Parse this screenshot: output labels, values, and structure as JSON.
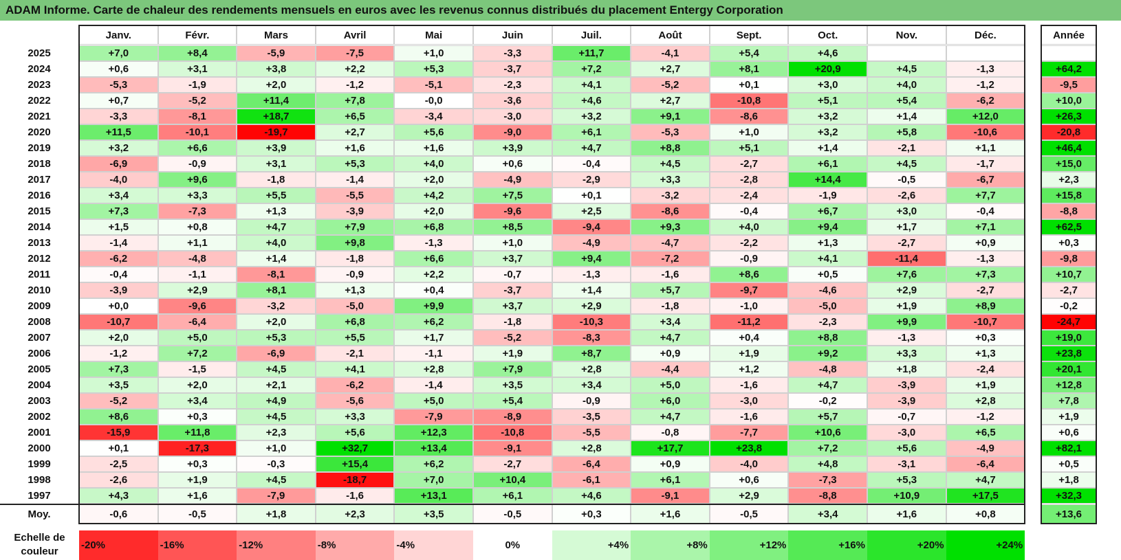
{
  "title": "ADAM Informe. Carte de chaleur des rendements mensuels en euros avec les revenus connus distribués du placement Entergy Corporation",
  "chart_data": {
    "type": "heatmap",
    "title": "ADAM Informe. Carte de chaleur des rendements mensuels en euros avec les revenus connus distribués du placement Entergy Corporation",
    "months": [
      "Janv.",
      "Févr.",
      "Mars",
      "Avril",
      "Mai",
      "Juin",
      "Juil.",
      "Août",
      "Sept.",
      "Oct.",
      "Nov.",
      "Déc."
    ],
    "annual_label": "Année",
    "rows": [
      {
        "year": "2025",
        "values": [
          "+7,0",
          "+8,4",
          "-5,9",
          "-7,5",
          "+1,0",
          "-3,3",
          "+11,7",
          "-4,1",
          "+5,4",
          "+4,6",
          "",
          ""
        ],
        "annual": ""
      },
      {
        "year": "2024",
        "values": [
          "+0,6",
          "+3,1",
          "+3,8",
          "+2,2",
          "+5,3",
          "-3,7",
          "+7,2",
          "+2,7",
          "+8,1",
          "+20,9",
          "+4,5",
          "-1,3"
        ],
        "annual": "+64,2"
      },
      {
        "year": "2023",
        "values": [
          "-5,3",
          "-1,9",
          "+2,0",
          "-1,2",
          "-5,1",
          "-2,3",
          "+4,1",
          "-5,2",
          "+0,1",
          "+3,0",
          "+4,0",
          "-1,2"
        ],
        "annual": "-9,5"
      },
      {
        "year": "2022",
        "values": [
          "+0,7",
          "-5,2",
          "+11,4",
          "+7,8",
          "-0,0",
          "-3,6",
          "+4,6",
          "+2,7",
          "-10,8",
          "+5,1",
          "+5,4",
          "-6,2"
        ],
        "annual": "+10,0"
      },
      {
        "year": "2021",
        "values": [
          "-3,3",
          "-8,1",
          "+18,7",
          "+6,5",
          "-3,4",
          "-3,0",
          "+3,2",
          "+9,1",
          "-8,6",
          "+3,2",
          "+1,4",
          "+12,0"
        ],
        "annual": "+26,3"
      },
      {
        "year": "2020",
        "values": [
          "+11,5",
          "-10,1",
          "-19,7",
          "+2,7",
          "+5,6",
          "-9,0",
          "+6,1",
          "-5,3",
          "+1,0",
          "+3,2",
          "+5,8",
          "-10,6"
        ],
        "annual": "-20,8"
      },
      {
        "year": "2019",
        "values": [
          "+3,2",
          "+6,6",
          "+3,9",
          "+1,6",
          "+1,6",
          "+3,9",
          "+4,7",
          "+8,8",
          "+5,1",
          "+1,4",
          "-2,1",
          "+1,1"
        ],
        "annual": "+46,4"
      },
      {
        "year": "2018",
        "values": [
          "-6,9",
          "-0,9",
          "+3,1",
          "+5,3",
          "+4,0",
          "+0,6",
          "-0,4",
          "+4,5",
          "-2,7",
          "+6,1",
          "+4,5",
          "-1,7"
        ],
        "annual": "+15,0"
      },
      {
        "year": "2017",
        "values": [
          "-4,0",
          "+9,6",
          "-1,8",
          "-1,4",
          "+2,0",
          "-4,9",
          "-2,9",
          "+3,3",
          "-2,8",
          "+14,4",
          "-0,5",
          "-6,7"
        ],
        "annual": "+2,3"
      },
      {
        "year": "2016",
        "values": [
          "+3,4",
          "+3,3",
          "+5,5",
          "-5,5",
          "+4,2",
          "+7,5",
          "+0,1",
          "-3,2",
          "-2,4",
          "-1,9",
          "-2,6",
          "+7,7"
        ],
        "annual": "+15,8"
      },
      {
        "year": "2015",
        "values": [
          "+7,3",
          "-7,3",
          "+1,3",
          "-3,9",
          "+2,0",
          "-9,6",
          "+2,5",
          "-8,6",
          "-0,4",
          "+6,7",
          "+3,0",
          "-0,4"
        ],
        "annual": "-8,8"
      },
      {
        "year": "2014",
        "values": [
          "+1,5",
          "+0,8",
          "+4,7",
          "+7,9",
          "+6,8",
          "+8,5",
          "-9,4",
          "+9,3",
          "+4,0",
          "+9,4",
          "+1,7",
          "+7,1"
        ],
        "annual": "+62,5"
      },
      {
        "year": "2013",
        "values": [
          "-1,4",
          "+1,1",
          "+4,0",
          "+9,8",
          "-1,3",
          "+1,0",
          "-4,9",
          "-4,7",
          "-2,2",
          "+1,3",
          "-2,7",
          "+0,9"
        ],
        "annual": "+0,3"
      },
      {
        "year": "2012",
        "values": [
          "-6,2",
          "-4,8",
          "+1,4",
          "-1,8",
          "+6,6",
          "+3,7",
          "+9,4",
          "-7,2",
          "-0,9",
          "+4,1",
          "-11,4",
          "-1,3"
        ],
        "annual": "-9,8"
      },
      {
        "year": "2011",
        "values": [
          "-0,4",
          "-1,1",
          "-8,1",
          "-0,9",
          "+2,2",
          "-0,7",
          "-1,3",
          "-1,6",
          "+8,6",
          "+0,5",
          "+7,6",
          "+7,3"
        ],
        "annual": "+10,7"
      },
      {
        "year": "2010",
        "values": [
          "-3,9",
          "+2,9",
          "+8,1",
          "+1,3",
          "+0,4",
          "-3,7",
          "+1,4",
          "+5,7",
          "-9,7",
          "-4,6",
          "+2,9",
          "-2,7"
        ],
        "annual": "-2,7"
      },
      {
        "year": "2009",
        "values": [
          "+0,0",
          "-9,6",
          "-3,2",
          "-5,0",
          "+9,9",
          "+3,7",
          "+2,9",
          "-1,8",
          "-1,0",
          "-5,0",
          "+1,9",
          "+8,9"
        ],
        "annual": "-0,2"
      },
      {
        "year": "2008",
        "values": [
          "-10,7",
          "-6,4",
          "+2,0",
          "+6,8",
          "+6,2",
          "-1,8",
          "-10,3",
          "+3,4",
          "-11,2",
          "-2,3",
          "+9,9",
          "-10,7"
        ],
        "annual": "-24,7"
      },
      {
        "year": "2007",
        "values": [
          "+2,0",
          "+5,0",
          "+5,3",
          "+5,5",
          "+1,7",
          "-5,2",
          "-8,3",
          "+4,7",
          "+0,4",
          "+8,8",
          "-1,3",
          "+0,3"
        ],
        "annual": "+19,0"
      },
      {
        "year": "2006",
        "values": [
          "-1,2",
          "+7,2",
          "-6,9",
          "-2,1",
          "-1,1",
          "+1,9",
          "+8,7",
          "+0,9",
          "+1,9",
          "+9,2",
          "+3,3",
          "+1,3"
        ],
        "annual": "+23,8"
      },
      {
        "year": "2005",
        "values": [
          "+7,3",
          "-1,5",
          "+4,5",
          "+4,1",
          "+2,8",
          "+7,9",
          "+2,8",
          "-4,4",
          "+1,2",
          "-4,8",
          "+1,8",
          "-2,4"
        ],
        "annual": "+20,1"
      },
      {
        "year": "2004",
        "values": [
          "+3,5",
          "+2,0",
          "+2,1",
          "-6,2",
          "-1,4",
          "+3,5",
          "+3,4",
          "+5,0",
          "-1,6",
          "+4,7",
          "-3,9",
          "+1,9"
        ],
        "annual": "+12,8"
      },
      {
        "year": "2003",
        "values": [
          "-5,2",
          "+3,4",
          "+4,9",
          "-5,6",
          "+5,0",
          "+5,4",
          "-0,9",
          "+6,0",
          "-3,0",
          "-0,2",
          "-3,9",
          "+2,8"
        ],
        "annual": "+7,8"
      },
      {
        "year": "2002",
        "values": [
          "+8,6",
          "+0,3",
          "+4,5",
          "+3,3",
          "-7,9",
          "-8,9",
          "-3,5",
          "+4,7",
          "-1,6",
          "+5,7",
          "-0,7",
          "-1,2"
        ],
        "annual": "+1,9"
      },
      {
        "year": "2001",
        "values": [
          "-15,9",
          "+11,8",
          "+2,3",
          "+5,6",
          "+12,3",
          "-10,8",
          "-5,5",
          "-0,8",
          "-7,7",
          "+10,6",
          "-3,0",
          "+6,5"
        ],
        "annual": "+0,6"
      },
      {
        "year": "2000",
        "values": [
          "+0,1",
          "-17,3",
          "+1,0",
          "+32,7",
          "+13,4",
          "-9,1",
          "+2,8",
          "+17,7",
          "+23,8",
          "+7,2",
          "+5,6",
          "-4,9"
        ],
        "annual": "+82,1"
      },
      {
        "year": "1999",
        "values": [
          "-2,5",
          "+0,3",
          "-0,3",
          "+15,4",
          "+6,2",
          "-2,7",
          "-6,4",
          "+0,9",
          "-4,0",
          "+4,8",
          "-3,1",
          "-6,4"
        ],
        "annual": "+0,5"
      },
      {
        "year": "1998",
        "values": [
          "-2,6",
          "+1,9",
          "+4,5",
          "-18,7",
          "+7,0",
          "+10,4",
          "-6,1",
          "+6,1",
          "+0,6",
          "-7,3",
          "+5,3",
          "+4,7"
        ],
        "annual": "+1,8"
      },
      {
        "year": "1997",
        "values": [
          "+4,3",
          "+1,6",
          "-7,9",
          "-1,6",
          "+13,1",
          "+6,1",
          "+4,6",
          "-9,1",
          "+2,9",
          "-8,8",
          "+10,9",
          "+17,5"
        ],
        "annual": "+32,3"
      }
    ],
    "average": {
      "label": "Moy.",
      "values": [
        "-0,6",
        "-0,5",
        "+1,8",
        "+2,3",
        "+3,5",
        "-0,5",
        "+0,3",
        "+1,6",
        "-0,5",
        "+3,4",
        "+1,6",
        "+0,8"
      ],
      "annual": "+13,6"
    },
    "scale": {
      "title": "Echelle de couleur",
      "stops": [
        "-20%",
        "-16%",
        "-12%",
        "-8%",
        "-4%",
        "0%",
        "+4%",
        "+8%",
        "+12%",
        "+16%",
        "+20%",
        "+24%"
      ]
    },
    "colors": {
      "negative": "#ff0000",
      "neutral": "#ffffff",
      "positive": "#00e000",
      "title_bar": "#7cc77c"
    }
  }
}
